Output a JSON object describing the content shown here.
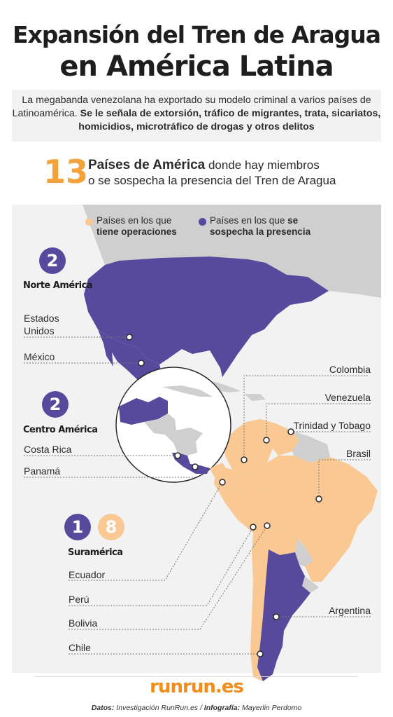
{
  "title_line1": "Expansión del Tren de Aragua",
  "title_line2": "en América Latina",
  "intro": {
    "plain": "La megabanda venezolana ha exportado su modelo criminal a varios países de Latinoamérica. ",
    "bold": "Se le señala de extorsión, tráfico de migrantes, trata, sicariatos, homicidios, microtráfico de drogas y otros delitos"
  },
  "stat": {
    "number": "13",
    "bold": "Países de América",
    "rest_line1": " donde hay miembros",
    "line2": "o se sospecha la presencia del Tren de Aragua"
  },
  "legend": {
    "operations": {
      "line1": "Países en los que",
      "line2": "tiene operaciones",
      "color": "#f9c893"
    },
    "suspected": {
      "line1_plain": "Países en los que ",
      "line1_bold": "se",
      "line2": "sospecha la presencia",
      "color": "#574a9c"
    }
  },
  "regions": {
    "north": {
      "count": "2",
      "name": "Norte América",
      "countries": [
        "Estados",
        "Unidos",
        "México"
      ]
    },
    "central": {
      "count": "2",
      "name": "Centro América",
      "countries": [
        "Costa Rica",
        "Panamá"
      ]
    },
    "south": {
      "count_suspected": "1",
      "count_operations": "8",
      "name": "Suramérica",
      "countries_left": [
        "Ecuador",
        "Perú",
        "Bolivia",
        "Chile"
      ]
    }
  },
  "right_labels": [
    "Colombia",
    "Venezuela",
    "Trinidad y Tobago",
    "Brasil",
    "Argentina"
  ],
  "footer": {
    "logo": "runrun.es",
    "credit_label1": "Datos:",
    "credit_text1": " Investigación RunRun.es / ",
    "credit_label2": "Infografía:",
    "credit_text2": " Mayerlin Perdomo"
  },
  "colors": {
    "suspected": "#574a9c",
    "operations": "#f9c893",
    "other_land": "#cfcfcf",
    "sea_bg": "#f3f2f3",
    "accent_orange": "#f4a23a"
  }
}
